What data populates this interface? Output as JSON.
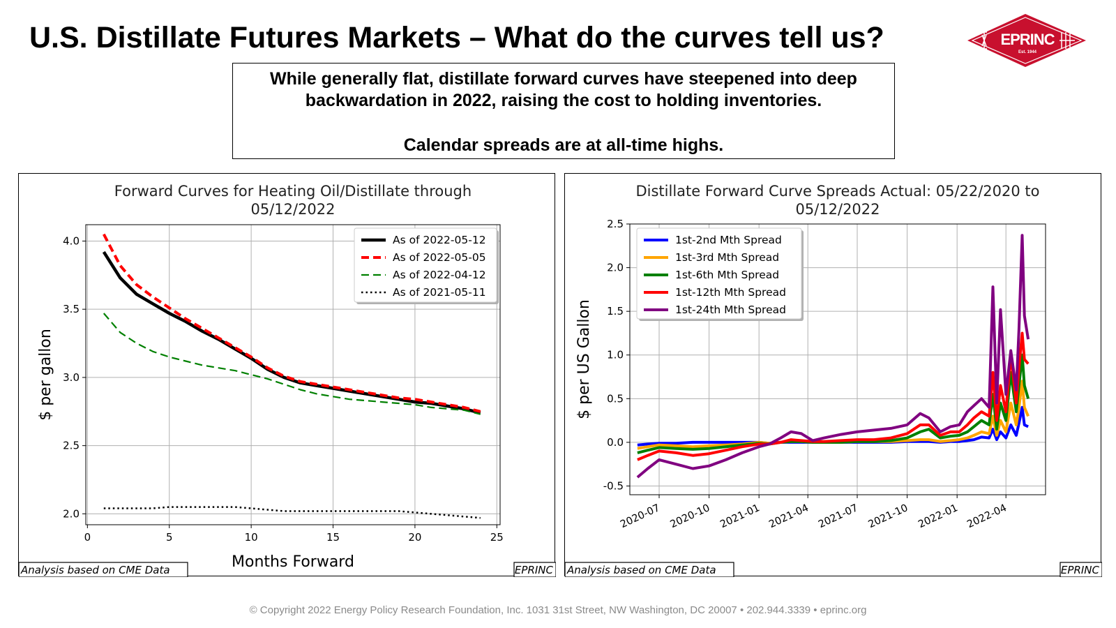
{
  "page": {
    "title": "U.S. Distillate Futures Markets – What do the curves tell us?",
    "callout_lines": [
      "While generally flat, distillate forward curves have steepened into deep",
      "backwardation in 2022, raising the cost to holding inventories.",
      "Calendar spreads are at all-time highs."
    ],
    "footer": "© Copyright 2022 Energy Policy Research Foundation, Inc. 1031 31st Street, NW Washington, DC 20007 • 202.944.3339 • eprinc.org",
    "logo": {
      "name": "EPRINC",
      "est": "Est. 1944",
      "ring_top": "ENERGY POLICY",
      "ring_bottom": "RESEARCH FOUNDATION INC.",
      "color": "#c8102e"
    }
  },
  "chart_data": [
    {
      "type": "line",
      "title": "Forward Curves for Heating Oil/Distillate through 05/12/2022",
      "title_lines": [
        "Forward Curves for Heating Oil/Distillate through",
        "05/12/2022"
      ],
      "xlabel": "Months Forward",
      "ylabel": "$ per gallon",
      "xlim": [
        -0.1,
        25.2
      ],
      "ylim": [
        1.92,
        4.12
      ],
      "xticks": [
        0,
        5,
        10,
        15,
        20,
        25
      ],
      "yticks": [
        2.0,
        2.5,
        3.0,
        3.5,
        4.0
      ],
      "grid": true,
      "legend_position": "top-right",
      "x": [
        1,
        2,
        3,
        4,
        5,
        6,
        7,
        8,
        9,
        10,
        11,
        12,
        13,
        14,
        15,
        16,
        17,
        18,
        19,
        20,
        21,
        22,
        23,
        24
      ],
      "series": [
        {
          "name": "As of 2022-05-12",
          "color": "#000000",
          "style": "solid",
          "width": 4.5,
          "values": [
            3.92,
            3.73,
            3.61,
            3.54,
            3.47,
            3.41,
            3.34,
            3.28,
            3.21,
            3.14,
            3.06,
            3.0,
            2.96,
            2.94,
            2.92,
            2.9,
            2.88,
            2.86,
            2.84,
            2.82,
            2.81,
            2.79,
            2.77,
            2.74
          ]
        },
        {
          "name": "As of 2022-05-05",
          "color": "#ff0000",
          "style": "dashed",
          "width": 4,
          "values": [
            4.05,
            3.82,
            3.68,
            3.59,
            3.51,
            3.43,
            3.36,
            3.29,
            3.22,
            3.15,
            3.07,
            3.01,
            2.97,
            2.95,
            2.93,
            2.91,
            2.89,
            2.87,
            2.85,
            2.84,
            2.82,
            2.8,
            2.78,
            2.75
          ]
        },
        {
          "name": "As of 2022-04-12",
          "color": "#008000",
          "style": "dashed",
          "width": 2.2,
          "values": [
            3.47,
            3.33,
            3.25,
            3.19,
            3.15,
            3.12,
            3.09,
            3.07,
            3.05,
            3.02,
            2.99,
            2.95,
            2.91,
            2.88,
            2.86,
            2.84,
            2.83,
            2.82,
            2.81,
            2.8,
            2.78,
            2.77,
            2.76,
            2.73
          ]
        },
        {
          "name": "As of 2021-05-11",
          "color": "#000000",
          "style": "dotted",
          "width": 2.5,
          "values": [
            2.04,
            2.04,
            2.04,
            2.04,
            2.05,
            2.05,
            2.05,
            2.05,
            2.05,
            2.04,
            2.03,
            2.02,
            2.02,
            2.02,
            2.02,
            2.02,
            2.02,
            2.02,
            2.02,
            2.01,
            2.0,
            1.99,
            1.98,
            1.97
          ]
        }
      ],
      "source_note": "Analysis based on CME Data",
      "credit": "EPRINC"
    },
    {
      "type": "line",
      "title": "Distillate Forward Curve Spreads Actual: 05/22/2020 to 05/12/2022",
      "title_lines": [
        "Distillate Forward Curve Spreads Actual: 05/22/2020 to",
        "05/12/2022"
      ],
      "xlabel": "",
      "ylabel": "$ per US Gallon",
      "xlim": [
        "2020-05-08",
        "2022-06-13"
      ],
      "ylim": [
        -0.6,
        2.5
      ],
      "xticks": [
        "2020-07",
        "2020-10",
        "2021-01",
        "2021-04",
        "2021-07",
        "2021-10",
        "2022-01",
        "2022-04"
      ],
      "yticks": [
        -0.5,
        0.0,
        0.5,
        1.0,
        1.5,
        2.0,
        2.5
      ],
      "grid": true,
      "legend_position": "top-left",
      "x": [
        "2020-05-22",
        "2020-06-10",
        "2020-07-01",
        "2020-08-01",
        "2020-09-01",
        "2020-10-01",
        "2020-11-01",
        "2020-12-01",
        "2021-01-01",
        "2021-01-20",
        "2021-02-10",
        "2021-03-01",
        "2021-03-20",
        "2021-04-10",
        "2021-05-01",
        "2021-06-01",
        "2021-07-01",
        "2021-08-01",
        "2021-09-01",
        "2021-10-01",
        "2021-10-25",
        "2021-11-10",
        "2021-12-01",
        "2021-12-20",
        "2022-01-05",
        "2022-01-20",
        "2022-02-01",
        "2022-02-15",
        "2022-03-01",
        "2022-03-08",
        "2022-03-15",
        "2022-03-22",
        "2022-04-01",
        "2022-04-10",
        "2022-04-20",
        "2022-04-25",
        "2022-05-01",
        "2022-05-05",
        "2022-05-12"
      ],
      "series": [
        {
          "name": "1st-2nd Mth Spread",
          "color": "#0000ff",
          "values": [
            -0.03,
            -0.02,
            -0.01,
            -0.01,
            0.0,
            0.0,
            0.0,
            0.0,
            0.0,
            -0.01,
            0.0,
            0.0,
            0.0,
            0.0,
            0.0,
            0.0,
            0.0,
            0.0,
            0.0,
            0.01,
            0.01,
            0.01,
            0.0,
            0.01,
            0.01,
            0.02,
            0.03,
            0.06,
            0.05,
            0.15,
            0.03,
            0.12,
            0.05,
            0.2,
            0.08,
            0.22,
            0.4,
            0.2,
            0.18
          ]
        },
        {
          "name": "1st-3rd Mth Spread",
          "color": "#ffa500",
          "values": [
            -0.07,
            -0.05,
            -0.03,
            -0.04,
            -0.05,
            -0.04,
            -0.03,
            -0.02,
            0.0,
            -0.01,
            0.0,
            0.01,
            0.01,
            0.0,
            0.0,
            0.0,
            0.01,
            0.01,
            0.01,
            0.02,
            0.03,
            0.03,
            0.01,
            0.02,
            0.03,
            0.05,
            0.08,
            0.12,
            0.1,
            0.3,
            0.08,
            0.25,
            0.12,
            0.45,
            0.2,
            0.4,
            0.7,
            0.4,
            0.3
          ]
        },
        {
          "name": "1st-6th Mth Spread",
          "color": "#008000",
          "values": [
            -0.12,
            -0.09,
            -0.06,
            -0.07,
            -0.08,
            -0.07,
            -0.05,
            -0.03,
            -0.01,
            -0.02,
            0.0,
            0.01,
            0.01,
            0.0,
            0.0,
            0.0,
            0.01,
            0.01,
            0.02,
            0.05,
            0.12,
            0.15,
            0.05,
            0.07,
            0.08,
            0.12,
            0.18,
            0.25,
            0.2,
            0.55,
            0.15,
            0.45,
            0.25,
            0.8,
            0.35,
            0.65,
            1.0,
            0.65,
            0.5
          ]
        },
        {
          "name": "1st-12th Mth Spread",
          "color": "#ff0000",
          "values": [
            -0.2,
            -0.15,
            -0.1,
            -0.12,
            -0.15,
            -0.13,
            -0.09,
            -0.05,
            -0.02,
            -0.02,
            0.0,
            0.03,
            0.02,
            0.01,
            0.01,
            0.02,
            0.03,
            0.03,
            0.05,
            0.1,
            0.2,
            0.2,
            0.08,
            0.12,
            0.12,
            0.2,
            0.28,
            0.35,
            0.3,
            0.8,
            0.25,
            0.65,
            0.35,
            1.0,
            0.45,
            0.85,
            1.25,
            0.95,
            0.9
          ]
        },
        {
          "name": "1st-24th Mth Spread",
          "color": "#800080",
          "values": [
            -0.4,
            -0.3,
            -0.2,
            -0.25,
            -0.3,
            -0.27,
            -0.2,
            -0.12,
            -0.05,
            -0.02,
            0.05,
            0.12,
            0.1,
            0.02,
            0.05,
            0.09,
            0.12,
            0.14,
            0.16,
            0.2,
            0.33,
            0.28,
            0.12,
            0.18,
            0.2,
            0.35,
            0.42,
            0.5,
            0.4,
            1.78,
            0.45,
            1.52,
            0.55,
            1.05,
            0.6,
            1.3,
            2.37,
            1.45,
            1.18
          ]
        }
      ],
      "source_note": "Analysis based on CME Data",
      "credit": "EPRINC"
    }
  ]
}
